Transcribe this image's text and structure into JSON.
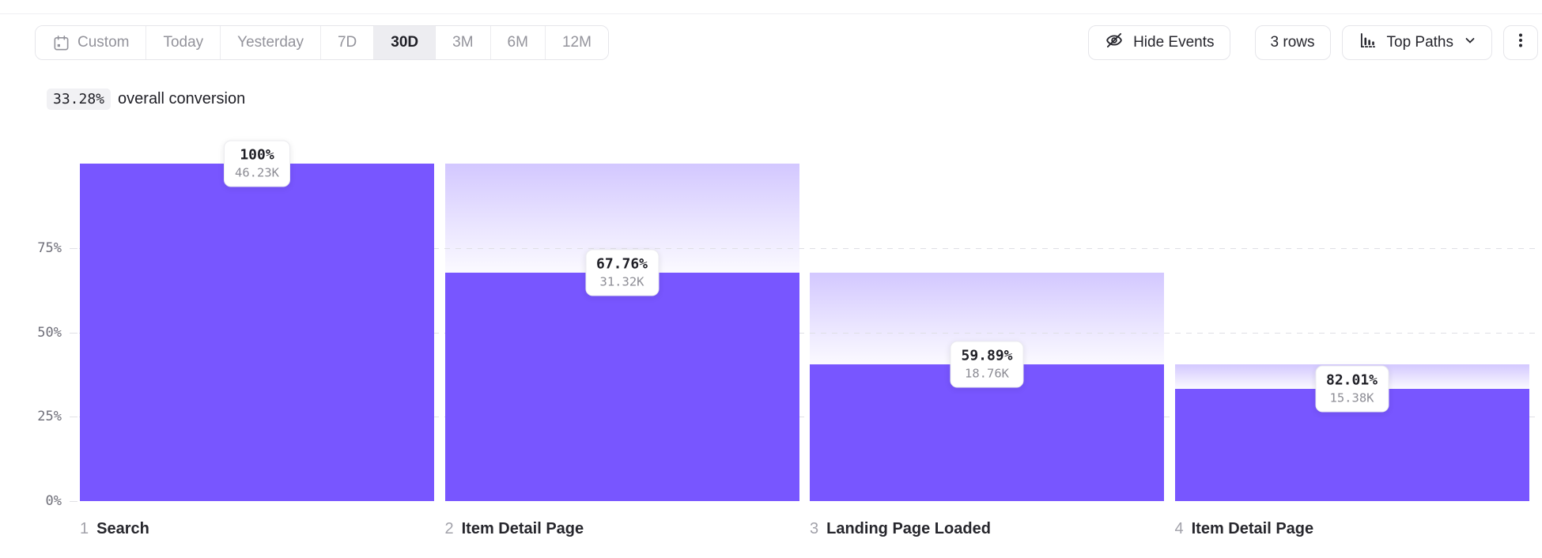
{
  "toolbar": {
    "date_ranges": [
      {
        "label": "Custom",
        "icon": "calendar-icon",
        "selected": false
      },
      {
        "label": "Today",
        "selected": false
      },
      {
        "label": "Yesterday",
        "selected": false
      },
      {
        "label": "7D",
        "selected": false
      },
      {
        "label": "30D",
        "selected": true
      },
      {
        "label": "3M",
        "selected": false
      },
      {
        "label": "6M",
        "selected": false
      },
      {
        "label": "12M",
        "selected": false
      }
    ],
    "hide_events_label": "Hide Events",
    "rows_label": "3 rows",
    "top_paths_label": "Top Paths"
  },
  "summary": {
    "conversion_value": "33.28%",
    "conversion_text": "overall conversion"
  },
  "chart_data": {
    "type": "bar",
    "subtype": "funnel",
    "title": "",
    "xlabel": "",
    "ylabel": "",
    "ylim": [
      0,
      100
    ],
    "grid": "dashed-horizontal",
    "colors": {
      "bar": "#7856FF",
      "dropoff_gradient_top": "rgba(120,86,255,0.33)",
      "dropoff_gradient_bottom": "rgba(120,86,255,0.03)"
    },
    "yticks": [
      {
        "label": "75%",
        "value": 75
      },
      {
        "label": "50%",
        "value": 50
      },
      {
        "label": "25%",
        "value": 25
      },
      {
        "label": "0%",
        "value": 0
      }
    ],
    "overall_conversion_pct": 33.28,
    "steps": [
      {
        "index": "1",
        "name": "Search",
        "step_conversion_label": "100%",
        "count_label": "46.23K",
        "count": 46230,
        "cumulative_pct": 100,
        "prev_cumulative_pct": 100
      },
      {
        "index": "2",
        "name": "Item Detail Page",
        "step_conversion_label": "67.76%",
        "count_label": "31.32K",
        "count": 31320,
        "cumulative_pct": 67.76,
        "prev_cumulative_pct": 100
      },
      {
        "index": "3",
        "name": "Landing Page Loaded",
        "step_conversion_label": "59.89%",
        "count_label": "18.76K",
        "count": 18760,
        "cumulative_pct": 40.58,
        "prev_cumulative_pct": 67.76
      },
      {
        "index": "4",
        "name": "Item Detail Page",
        "step_conversion_label": "82.01%",
        "count_label": "15.38K",
        "count": 15380,
        "cumulative_pct": 33.27,
        "prev_cumulative_pct": 40.58
      }
    ]
  }
}
